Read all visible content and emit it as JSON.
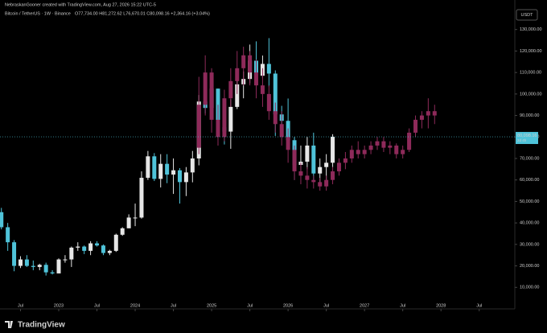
{
  "header": {
    "credit": "NebraskanGooner created with TradingView.com, Aug 27, 2026 15:22 UTC-5",
    "symbol": "Bitcoin / TetherUS · 1W · Binance",
    "ohlc": "O77,734.00 H81,272.62 L76,670.01 C80,098.16 +2,364.16 (+3.04%)",
    "currency": "USDT"
  },
  "footer": {
    "logo": "TradingView"
  },
  "chart_data": {
    "type": "candlestick",
    "ylim": [
      0,
      140000
    ],
    "yticks": [
      {
        "value": 10000,
        "label": "10,000.00"
      },
      {
        "value": 20000,
        "label": "20,000.00"
      },
      {
        "value": 30000,
        "label": "30,000.00"
      },
      {
        "value": 40000,
        "label": "40,000.00"
      },
      {
        "value": 50000,
        "label": "50,000.00"
      },
      {
        "value": 60000,
        "label": "60,000.00"
      },
      {
        "value": 70000,
        "label": "70,000.00"
      },
      {
        "value": 80000,
        "label": "80,000.00"
      },
      {
        "value": 90000,
        "label": "90,000.00"
      },
      {
        "value": 100000,
        "label": "100,000.00"
      },
      {
        "value": 110000,
        "label": "110,000.00"
      },
      {
        "value": 120000,
        "label": "120,000.00"
      },
      {
        "value": 130000,
        "label": "130,000.00"
      }
    ],
    "xticks": [
      {
        "value": "2022-07",
        "label": "Jul"
      },
      {
        "value": "2023-01",
        "label": "2023"
      },
      {
        "value": "2023-07",
        "label": "Jul"
      },
      {
        "value": "2024-01",
        "label": "2024"
      },
      {
        "value": "2024-07",
        "label": "Jul"
      },
      {
        "value": "2025-01",
        "label": "2025"
      },
      {
        "value": "2025-07",
        "label": "Jul"
      },
      {
        "value": "2026-01",
        "label": "2026"
      },
      {
        "value": "2026-07",
        "label": "Jul"
      },
      {
        "value": "2027-01",
        "label": "2027"
      },
      {
        "value": "2027-07",
        "label": "Jul"
      },
      {
        "value": "2028-01",
        "label": "2028"
      },
      {
        "value": "2028-07",
        "label": "Jul"
      }
    ],
    "last_price": {
      "value": 80098.16,
      "label": "80,098.16",
      "countdown": "2d 4h"
    },
    "series": [
      {
        "up_color": "#e6e6e6",
        "down_color": "#4fc3d9",
        "x": [
          "2022-04",
          "2022-05",
          "2022-06",
          "2022-07",
          "2022-08",
          "2022-09",
          "2022-10",
          "2022-11",
          "2022-12",
          "2023-01",
          "2023-02",
          "2023-03",
          "2023-04",
          "2023-05",
          "2023-06",
          "2023-07",
          "2023-08",
          "2023-09",
          "2023-10",
          "2023-11",
          "2023-12",
          "2024-01",
          "2024-02",
          "2024-03",
          "2024-04",
          "2024-05",
          "2024-06",
          "2024-07",
          "2024-08",
          "2024-09",
          "2024-10",
          "2024-11",
          "2024-12",
          "2025-01",
          "2025-02",
          "2025-03",
          "2025-04",
          "2025-05",
          "2025-06",
          "2025-07",
          "2025-08",
          "2025-09",
          "2025-10",
          "2025-11",
          "2025-12",
          "2026-01",
          "2026-02",
          "2026-03",
          "2026-04",
          "2026-05",
          "2026-06",
          "2026-07",
          "2026-08"
        ],
        "open": [
          45000,
          38000,
          31000,
          20000,
          23000,
          20000,
          19500,
          20500,
          17000,
          16500,
          23000,
          23000,
          28500,
          29000,
          27000,
          30500,
          29500,
          26000,
          27000,
          34500,
          37500,
          42500,
          42500,
          61000,
          71000,
          60500,
          67500,
          62500,
          64500,
          59000,
          63500,
          70000,
          96500,
          93500,
          102500,
          84500,
          82500,
          94000,
          104500,
          107000,
          115500,
          108500,
          114000,
          109500,
          90500,
          87500,
          78500,
          67000,
          68500,
          76000,
          63000,
          66000,
          68000
        ],
        "high": [
          47000,
          40000,
          32000,
          24500,
          25000,
          22500,
          21000,
          21500,
          18000,
          23500,
          25000,
          29000,
          31000,
          29500,
          31500,
          31500,
          30000,
          27500,
          35000,
          38000,
          44000,
          49000,
          64000,
          73500,
          72500,
          72000,
          72000,
          70000,
          65500,
          66000,
          73500,
          99500,
          108000,
          109500,
          102500,
          95000,
          97500,
          111900,
          110500,
          123000,
          124500,
          117900,
          126000,
          111000,
          94500,
          97900,
          80000,
          76000,
          80000,
          82000,
          70000,
          72000,
          81300
        ],
        "low": [
          37000,
          27000,
          17500,
          19000,
          19500,
          18000,
          18000,
          15500,
          16000,
          16500,
          21500,
          19500,
          27000,
          25500,
          25000,
          29000,
          25000,
          25000,
          26500,
          34000,
          37500,
          38500,
          42000,
          60000,
          59500,
          56500,
          58500,
          53500,
          49000,
          52500,
          58900,
          66800,
          91000,
          89000,
          78000,
          76500,
          74500,
          93000,
          98000,
          105000,
          108000,
          107300,
          103500,
          80500,
          84500,
          74500,
          60000,
          63000,
          65000,
          60000,
          58000,
          58000,
          66000
        ],
        "close": [
          38000,
          31000,
          20000,
          23000,
          20000,
          19500,
          20500,
          17000,
          16500,
          23000,
          23000,
          28500,
          29000,
          27000,
          30500,
          29500,
          26000,
          27000,
          34500,
          37500,
          42500,
          42500,
          61000,
          71000,
          60500,
          67500,
          62500,
          64500,
          59000,
          63500,
          70000,
          96500,
          93500,
          102500,
          84500,
          82500,
          94000,
          104500,
          107000,
          115500,
          108500,
          114000,
          109500,
          90500,
          87500,
          78500,
          67000,
          68500,
          76000,
          63000,
          66000,
          68000,
          80098.16
        ]
      },
      {
        "up_color": "#8e2a5a",
        "down_color": "#8e2a5a",
        "x": [
          "2024-11",
          "2024-12",
          "2025-01",
          "2025-02",
          "2025-03",
          "2025-04",
          "2025-05",
          "2025-06",
          "2025-07",
          "2025-08",
          "2025-09",
          "2025-10",
          "2025-11",
          "2025-12",
          "2026-01",
          "2026-02",
          "2026-03",
          "2026-04",
          "2026-05",
          "2026-06",
          "2026-07",
          "2026-08",
          "2026-09",
          "2026-10",
          "2026-11",
          "2026-12",
          "2027-01",
          "2027-02",
          "2027-03",
          "2027-04",
          "2027-05",
          "2027-06",
          "2027-07",
          "2027-08",
          "2027-09",
          "2027-10",
          "2027-11",
          "2027-12"
        ],
        "open": [
          75000,
          95000,
          110000,
          88000,
          80000,
          98000,
          106000,
          112000,
          118000,
          110000,
          104000,
          100000,
          92000,
          86000,
          80000,
          74000,
          64000,
          62000,
          60000,
          59000,
          57000,
          60000,
          64000,
          68000,
          70000,
          74000,
          72000,
          74000,
          76000,
          78000,
          75000,
          76000,
          72000,
          74000,
          82000,
          88000,
          90000,
          92000
        ],
        "high": [
          108000,
          118000,
          112000,
          95000,
          102000,
          112000,
          120000,
          122000,
          120000,
          116000,
          112000,
          104000,
          96000,
          92000,
          84000,
          76000,
          68000,
          66000,
          62000,
          61000,
          62000,
          66000,
          70000,
          73000,
          76000,
          78000,
          76000,
          78000,
          80000,
          80000,
          78000,
          77000,
          76000,
          84000,
          90000,
          92000,
          98000,
          95000
        ],
        "low": [
          72000,
          90000,
          82000,
          76000,
          78000,
          94000,
          100000,
          104000,
          104000,
          98000,
          94000,
          88000,
          82000,
          76000,
          68000,
          60000,
          58000,
          56000,
          56000,
          55000,
          55000,
          58000,
          62000,
          65000,
          68000,
          70000,
          70000,
          72000,
          74000,
          73000,
          72000,
          70000,
          70000,
          73000,
          80000,
          84000,
          84000,
          86000
        ],
        "close": [
          95000,
          110000,
          88000,
          80000,
          98000,
          106000,
          112000,
          118000,
          110000,
          104000,
          100000,
          92000,
          86000,
          80000,
          74000,
          64000,
          62000,
          60000,
          59000,
          57000,
          60000,
          64000,
          68000,
          70000,
          74000,
          72000,
          74000,
          76000,
          78000,
          75000,
          76000,
          72000,
          74000,
          82000,
          88000,
          90000,
          92000,
          90000
        ]
      }
    ]
  }
}
